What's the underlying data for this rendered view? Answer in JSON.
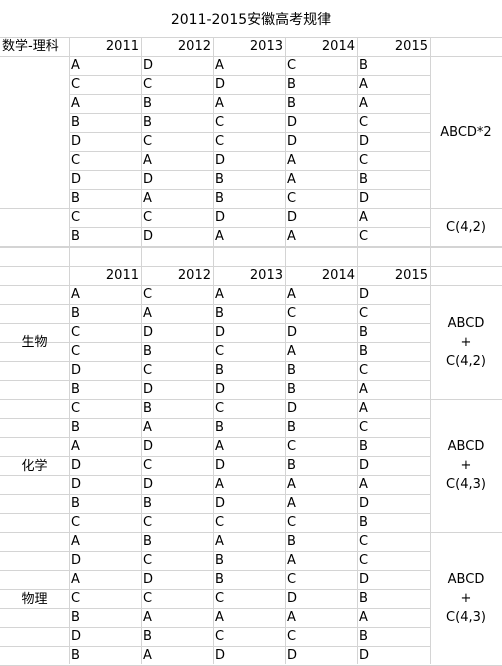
{
  "title": "2011-2015安徽高考规律",
  "years": [
    "2011",
    "2012",
    "2013",
    "2014",
    "2015"
  ],
  "sections": [
    {
      "label": "数学-理科",
      "groups": [
        {
          "pattern": [
            "ABCD*2"
          ],
          "rows": [
            [
              "A",
              "D",
              "A",
              "C",
              "B"
            ],
            [
              "C",
              "C",
              "D",
              "B",
              "A"
            ],
            [
              "A",
              "B",
              "A",
              "B",
              "A"
            ],
            [
              "B",
              "B",
              "C",
              "D",
              "C"
            ],
            [
              "D",
              "C",
              "C",
              "D",
              "D"
            ],
            [
              "C",
              "A",
              "D",
              "A",
              "C"
            ],
            [
              "D",
              "D",
              "B",
              "A",
              "B"
            ],
            [
              "B",
              "A",
              "B",
              "C",
              "D"
            ]
          ]
        },
        {
          "pattern": [
            "C(4,2)"
          ],
          "rows": [
            [
              "C",
              "C",
              "D",
              "D",
              "A"
            ],
            [
              "B",
              "D",
              "A",
              "A",
              "C"
            ]
          ]
        }
      ]
    },
    {
      "label": "生物",
      "groups": [
        {
          "pattern": [
            "ABCD",
            "+",
            "C(4,2)"
          ],
          "rows": [
            [
              "A",
              "C",
              "A",
              "A",
              "D"
            ],
            [
              "B",
              "A",
              "B",
              "C",
              "C"
            ],
            [
              "C",
              "D",
              "D",
              "D",
              "B"
            ],
            [
              "C",
              "B",
              "C",
              "A",
              "B"
            ],
            [
              "D",
              "C",
              "B",
              "B",
              "C"
            ],
            [
              "B",
              "D",
              "D",
              "B",
              "A"
            ]
          ]
        }
      ]
    },
    {
      "label": "化学",
      "groups": [
        {
          "pattern": [
            "ABCD",
            "+",
            "C(4,3)"
          ],
          "rows": [
            [
              "C",
              "B",
              "C",
              "D",
              "A"
            ],
            [
              "B",
              "A",
              "B",
              "B",
              "C"
            ],
            [
              "A",
              "D",
              "A",
              "C",
              "B"
            ],
            [
              "D",
              "C",
              "D",
              "B",
              "D"
            ],
            [
              "D",
              "D",
              "A",
              "A",
              "A"
            ],
            [
              "B",
              "B",
              "D",
              "A",
              "D"
            ],
            [
              "C",
              "C",
              "C",
              "C",
              "B"
            ]
          ]
        }
      ]
    },
    {
      "label": "物理",
      "groups": [
        {
          "pattern": [
            "ABCD",
            "+",
            "C(4,3)"
          ],
          "rows": [
            [
              "A",
              "B",
              "A",
              "B",
              "C"
            ],
            [
              "D",
              "C",
              "B",
              "A",
              "C"
            ],
            [
              "A",
              "D",
              "B",
              "C",
              "D"
            ],
            [
              "C",
              "C",
              "C",
              "D",
              "B"
            ],
            [
              "B",
              "A",
              "A",
              "A",
              "A"
            ],
            [
              "D",
              "B",
              "C",
              "C",
              "B"
            ],
            [
              "B",
              "A",
              "D",
              "D",
              "D"
            ]
          ]
        }
      ]
    }
  ]
}
